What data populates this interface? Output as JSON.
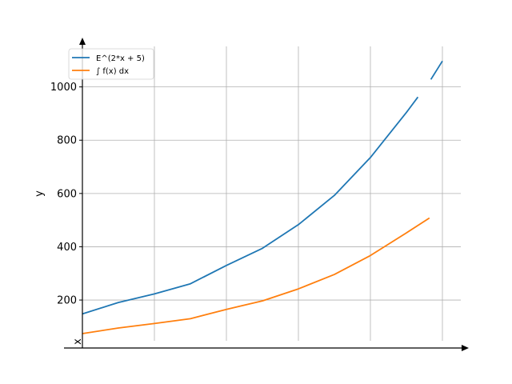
{
  "chart_data": {
    "type": "line",
    "title": "",
    "xlabel": "x",
    "ylabel": "y",
    "xlim": [
      0,
      2.5
    ],
    "ylim": [
      20,
      1110
    ],
    "y_ticks": [
      200,
      400,
      600,
      800,
      1000
    ],
    "grid": true,
    "legend_position": "top-left",
    "series": [
      {
        "name": "E^(2*x + 5)",
        "color": "#1f77b4",
        "segments": [
          {
            "x": [
              0,
              0.25,
              0.5,
              0.75,
              1.0,
              1.25,
              1.5,
              1.75,
              2.0,
              2.25,
              2.33
            ],
            "y": [
              148,
              191,
              223,
              261,
              330,
              394,
              483,
              593,
              735,
              904,
              962
            ]
          },
          {
            "x": [
              2.42,
              2.5
            ],
            "y": [
              1028,
              1097
            ]
          }
        ]
      },
      {
        "name": "∫ f(x) dx",
        "color": "#ff7f0e",
        "segments": [
          {
            "x": [
              0,
              0.25,
              0.5,
              0.75,
              1.0,
              1.25,
              1.5,
              1.75,
              2.0,
              2.25,
              2.41
            ],
            "y": [
              74,
              95,
              112,
              130,
              165,
              197,
              242,
              296,
              367,
              452,
              508
            ]
          }
        ]
      }
    ]
  }
}
